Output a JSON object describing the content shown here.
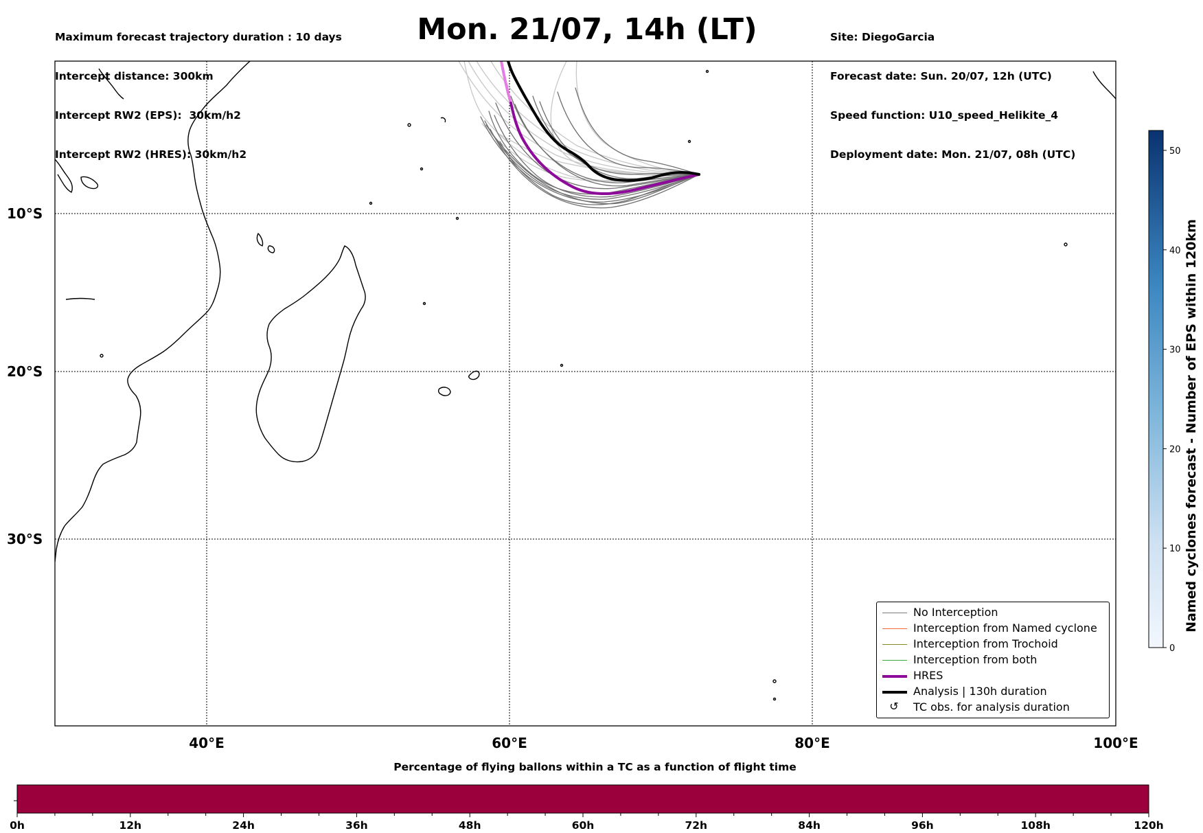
{
  "header": {
    "title": "Mon. 21/07, 14h (LT)",
    "left_lines": [
      "Maximum forecast trajectory duration : 10 days",
      "Intercept distance: 300km",
      "Intercept RW2 (EPS):  30km/h2",
      "Intercept RW2 (HRES): 30km/h2"
    ],
    "right_lines": [
      "Site: DiegoGarcia",
      "Forecast date: Sun. 20/07, 12h (UTC)",
      "Speed function: U10_speed_Helikite_4",
      "Deployment date: Mon. 21/07, 08h (UTC)"
    ]
  },
  "map": {
    "lon_range": [
      30,
      100
    ],
    "lat_range": [
      -43.5,
      0.5
    ],
    "lon_ticks": [
      {
        "value": 40,
        "label": "40°E"
      },
      {
        "value": 60,
        "label": "60°E"
      },
      {
        "value": 80,
        "label": "80°E"
      },
      {
        "value": 100,
        "label": "100°E"
      }
    ],
    "lat_ticks": [
      {
        "value": -10,
        "label": "10°S"
      },
      {
        "value": -20,
        "label": "20°S"
      },
      {
        "value": -30,
        "label": "30°S"
      }
    ],
    "grid": true,
    "colors": {
      "ensemble": "#6e6e6e",
      "ensemble_light": "#c8c8c8",
      "hres": "#8e0a9a",
      "hres_early": "#e67be6",
      "analysis": "#000000",
      "land_outline": "#000000"
    }
  },
  "legend": {
    "placement": "lower-right",
    "items": [
      {
        "label": "No Interception",
        "color": "#7a7a7a",
        "style": "thin"
      },
      {
        "label": "Interception from Named cyclone",
        "color": "#f4693a",
        "style": "thin"
      },
      {
        "label": "Interception from Trochoid",
        "color": "#8a8a2a",
        "style": "thin"
      },
      {
        "label": "Interception from both",
        "color": "#3aa83a",
        "style": "thin"
      },
      {
        "label": "HRES",
        "color": "#8e0a9a",
        "style": "thick"
      },
      {
        "label": "Analysis | 130h duration",
        "color": "#000000",
        "style": "thick"
      },
      {
        "label": "TC obs. for analysis duration",
        "color": "#000000",
        "style": "glyph"
      }
    ]
  },
  "colorbar": {
    "label": "Named cyclones forecast - Number of EPS within 120km",
    "min": 0,
    "max": 52,
    "ticks": [
      0,
      10,
      20,
      30,
      40,
      50
    ],
    "color_low": "#f2f7fd",
    "color_high": "#0a3370"
  },
  "timebar": {
    "title": "Percentage of flying ballons within a TC as a function of flight time",
    "min_h": 0,
    "max_h": 120,
    "tick_labels": [
      "0h",
      "12h",
      "24h",
      "36h",
      "48h",
      "60h",
      "72h",
      "84h",
      "96h",
      "108h",
      "120h"
    ],
    "minor_step_h": 4,
    "fill_color": "#9b003c"
  }
}
